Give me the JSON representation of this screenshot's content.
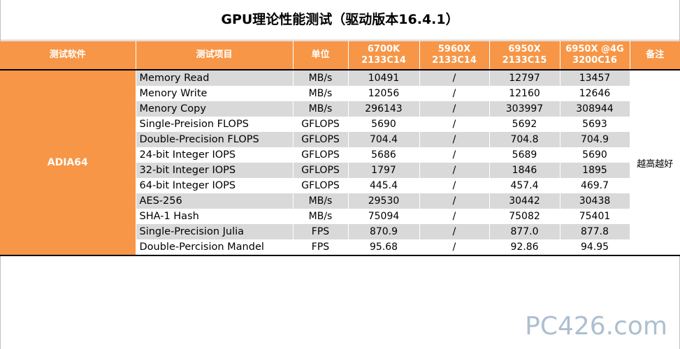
{
  "title": "GPU理论性能测试（驱动版本16.4.1）",
  "header": {
    "software": "测试软件",
    "item": "测试项目",
    "unit": "单位",
    "cols": [
      {
        "line1": "6700K",
        "line2": "2133C14"
      },
      {
        "line1": "5960X",
        "line2": "2133C14"
      },
      {
        "line1": "6950X",
        "line2": "2133C15"
      },
      {
        "line1": "6950X @4G",
        "line2": "3200C16"
      }
    ],
    "note": "备注"
  },
  "software_name": "ADIA64",
  "note_text": "越高越好",
  "rows": [
    {
      "item": "Memory Read",
      "unit": "MB/s",
      "v": [
        "10491",
        "/",
        "12797",
        "13457"
      ]
    },
    {
      "item": "Menory Write",
      "unit": "MB/s",
      "v": [
        "12056",
        "/",
        "12160",
        "12646"
      ]
    },
    {
      "item": "Menory Copy",
      "unit": "MB/s",
      "v": [
        "296143",
        "/",
        "303997",
        "308944"
      ]
    },
    {
      "item": "Single-Preision FLOPS",
      "unit": "GFLOPS",
      "v": [
        "5690",
        "/",
        "5692",
        "5693"
      ]
    },
    {
      "item": "Double-Precision FLOPS",
      "unit": "GFLOPS",
      "v": [
        "704.4",
        "/",
        "704.8",
        "704.9"
      ]
    },
    {
      "item": "24-bit Integer IOPS",
      "unit": "GFLOPS",
      "v": [
        "5686",
        "/",
        "5689",
        "5690"
      ]
    },
    {
      "item": "32-bit Integer IOPS",
      "unit": "GFLOPS",
      "v": [
        "1797",
        "/",
        "1846",
        "1895"
      ]
    },
    {
      "item": "64-bit Integer IOPS",
      "unit": "GFLOPS",
      "v": [
        "445.4",
        "/",
        "457.4",
        "469.7"
      ]
    },
    {
      "item": "AES-256",
      "unit": "MB/s",
      "v": [
        "29530",
        "/",
        "30442",
        "30438"
      ]
    },
    {
      "item": "SHA-1 Hash",
      "unit": "MB/s",
      "v": [
        "75094",
        "/",
        "75082",
        "75401"
      ]
    },
    {
      "item": "Single-Precision Julia",
      "unit": "FPS",
      "v": [
        "870.9",
        "/",
        "877.0",
        "877.8"
      ]
    },
    {
      "item": "Double-Percision Mandel",
      "unit": "FPS",
      "v": [
        "95.68",
        "/",
        "92.86",
        "94.95"
      ]
    }
  ],
  "watermark": "PC426.com",
  "colors": {
    "header_bg": "#f79646",
    "row_shade": "#d9d9d9",
    "watermark": "#9fb3c8"
  }
}
